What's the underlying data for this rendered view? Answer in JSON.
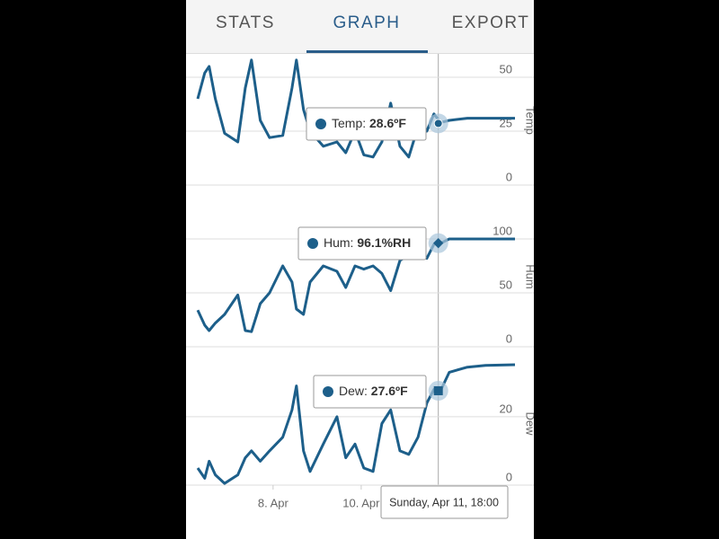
{
  "tabs": [
    "STATS",
    "GRAPH",
    "EXPORT"
  ],
  "cursor": {
    "x": 11.75,
    "label": "Sunday, Apr 11, 18:00"
  },
  "chart_data": [
    {
      "type": "line",
      "y_title": "Temp",
      "color": "#1d5f8a",
      "grid": true,
      "x": [
        6.29,
        6.45,
        6.55,
        6.69,
        6.9,
        7.2,
        7.37,
        7.51,
        7.71,
        7.92,
        8.22,
        8.43,
        8.53,
        8.69,
        8.84,
        9.14,
        9.45,
        9.65,
        9.86,
        10.06,
        10.27,
        10.47,
        10.67,
        10.88,
        11.08,
        11.29,
        11.49,
        11.65,
        11.8,
        12.0,
        12.41,
        12.82,
        13.49
      ],
      "values": [
        40,
        52,
        55,
        40,
        24,
        20,
        45,
        58,
        30,
        22,
        23,
        45,
        58,
        35,
        25,
        18,
        20,
        15,
        25,
        14,
        13,
        20,
        38,
        18,
        13,
        27,
        25,
        33,
        29,
        30,
        31,
        31,
        31
      ],
      "xlim": [
        6.29,
        13.49
      ],
      "ylim": [
        0,
        60
      ],
      "yticks": [
        0,
        25,
        50
      ],
      "tooltip": {
        "label": "Temp: ",
        "value": 28.6,
        "value_label": "28.6ºF"
      }
    },
    {
      "type": "line",
      "y_title": "Hum",
      "color": "#1d5f8a",
      "grid": true,
      "x": [
        6.29,
        6.45,
        6.55,
        6.69,
        6.9,
        7.2,
        7.37,
        7.51,
        7.71,
        7.92,
        8.22,
        8.43,
        8.53,
        8.69,
        8.84,
        9.14,
        9.45,
        9.65,
        9.86,
        10.06,
        10.27,
        10.47,
        10.67,
        10.88,
        11.08,
        11.29,
        11.49,
        11.65,
        11.8,
        12.0,
        12.41,
        12.82,
        13.49
      ],
      "values": [
        34,
        20,
        15,
        22,
        30,
        48,
        15,
        14,
        40,
        50,
        75,
        60,
        35,
        30,
        60,
        75,
        70,
        55,
        75,
        72,
        75,
        68,
        52,
        80,
        85,
        88,
        82,
        95,
        96,
        100,
        100,
        100,
        100
      ],
      "xlim": [
        6.29,
        13.49
      ],
      "ylim": [
        0,
        130
      ],
      "yticks": [
        0,
        50,
        100
      ],
      "tooltip": {
        "label": "Hum: ",
        "value": 96.1,
        "value_label": "96.1%RH"
      }
    },
    {
      "type": "line",
      "y_title": "Dew",
      "color": "#1d5f8a",
      "grid": true,
      "x": [
        6.29,
        6.45,
        6.55,
        6.69,
        6.9,
        7.2,
        7.37,
        7.51,
        7.71,
        7.92,
        8.22,
        8.43,
        8.53,
        8.69,
        8.84,
        9.14,
        9.45,
        9.65,
        9.86,
        10.06,
        10.27,
        10.47,
        10.67,
        10.88,
        11.08,
        11.29,
        11.49,
        11.65,
        11.8,
        12.0,
        12.41,
        12.82,
        13.49
      ],
      "values": [
        5,
        2,
        7,
        3,
        0.5,
        3,
        8,
        10,
        7,
        10,
        14,
        22,
        29,
        10,
        4,
        12,
        20,
        8,
        12,
        5,
        4,
        18,
        22,
        10,
        9,
        14,
        24,
        28,
        27.6,
        33,
        34.5,
        35,
        35.2
      ],
      "xlim": [
        6.29,
        13.49
      ],
      "ylim": [
        0,
        36
      ],
      "yticks": [
        0,
        20
      ],
      "xticks": [
        {
          "value": 8,
          "label": "8. Apr"
        },
        {
          "value": 10,
          "label": "10. Apr"
        }
      ],
      "tooltip": {
        "label": "Dew: ",
        "value": 27.6,
        "value_label": "27.6ºF"
      }
    }
  ]
}
